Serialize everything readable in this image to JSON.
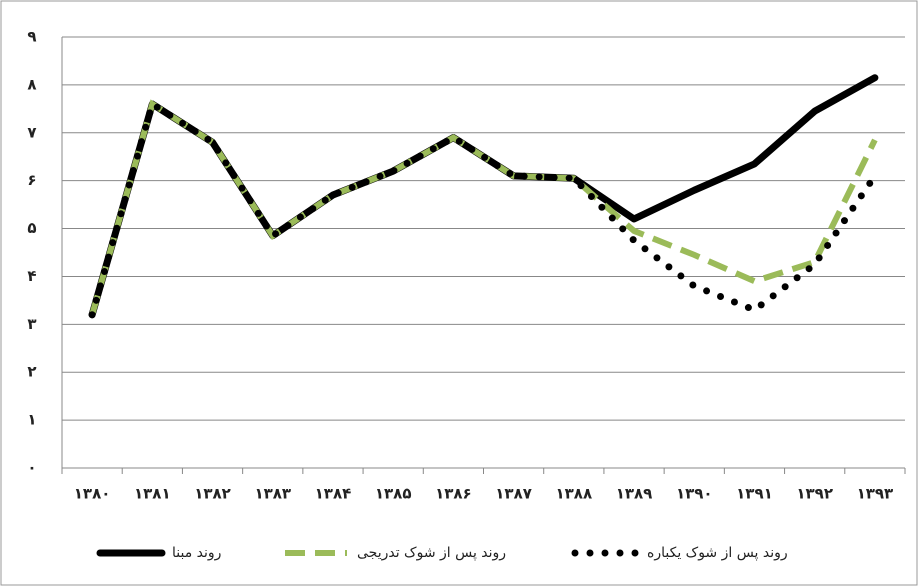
{
  "chart_data": {
    "type": "line",
    "categories": [
      "۱۳۸۰",
      "۱۳۸۱",
      "۱۳۸۲",
      "۱۳۸۳",
      "۱۳۸۴",
      "۱۳۸۵",
      "۱۳۸۶",
      "۱۳۸۷",
      "۱۳۸۸",
      "۱۳۸۹",
      "۱۳۹۰",
      "۱۳۹۱",
      "۱۳۹۲",
      "۱۳۹۳"
    ],
    "series": [
      {
        "name": "روند مبنا",
        "color": "#000000",
        "style": "solid",
        "values": [
          3.2,
          7.6,
          6.8,
          4.85,
          5.7,
          6.2,
          6.9,
          6.1,
          6.05,
          5.2,
          5.8,
          6.35,
          7.45,
          8.15
        ]
      },
      {
        "name": "روند پس از شوک تدریجی",
        "color": "#9bbb59",
        "style": "dashed",
        "values": [
          3.2,
          7.6,
          6.8,
          4.85,
          5.7,
          6.2,
          6.9,
          6.1,
          6.05,
          4.95,
          4.45,
          3.9,
          4.3,
          6.85
        ]
      },
      {
        "name": "روند پس از شوک یکباره",
        "color": "#000000",
        "style": "dotted",
        "values": [
          3.2,
          7.6,
          6.8,
          4.85,
          5.7,
          6.2,
          6.9,
          6.1,
          6.05,
          4.75,
          3.8,
          3.3,
          4.25,
          6.1
        ]
      }
    ],
    "ylim": [
      0,
      9
    ],
    "yticks": [
      {
        "value": 0,
        "label": "۰"
      },
      {
        "value": 1,
        "label": "۱"
      },
      {
        "value": 2,
        "label": "۲"
      },
      {
        "value": 3,
        "label": "۳"
      },
      {
        "value": 4,
        "label": "۴"
      },
      {
        "value": 5,
        "label": "۵"
      },
      {
        "value": 6,
        "label": "۶"
      },
      {
        "value": 7,
        "label": "۷"
      },
      {
        "value": 8,
        "label": "۸"
      },
      {
        "value": 9,
        "label": "۹"
      }
    ],
    "grid": true,
    "legend": "bottom"
  }
}
